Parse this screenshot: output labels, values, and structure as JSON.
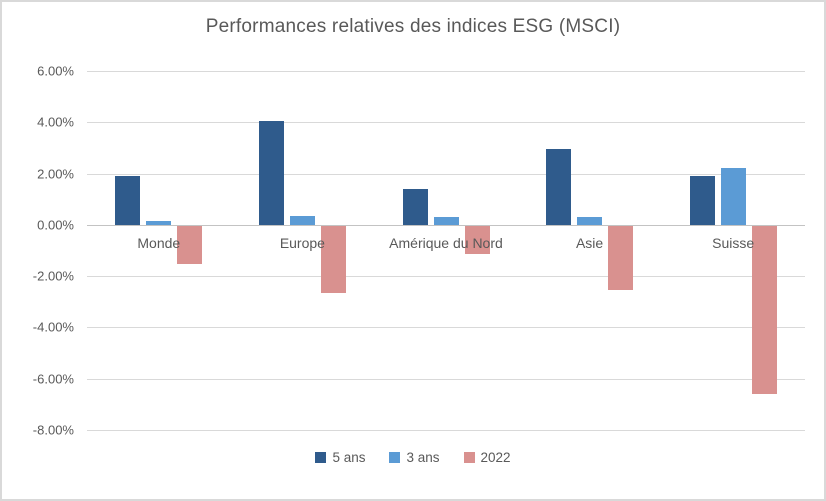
{
  "frame": {
    "background": "#FFFFFF",
    "border_color": "#D9D9D9",
    "text_color": "#595959",
    "gridline_color": "#D9D9D9",
    "zero_axis_color": "#C3C3C3"
  },
  "chart_data": {
    "type": "bar",
    "title": "Performances relatives des indices ESG (MSCI)",
    "categories": [
      "Monde",
      "Europe",
      "Amérique du Nord",
      "Asie",
      "Suisse"
    ],
    "series": [
      {
        "name": "5 ans",
        "color": "#2F5B8C",
        "values": [
          1.9,
          4.05,
          1.4,
          2.95,
          1.9
        ]
      },
      {
        "name": "3 ans",
        "color": "#5B9BD5",
        "values": [
          0.15,
          0.35,
          0.3,
          0.3,
          2.2
        ]
      },
      {
        "name": "2022",
        "color": "#D9918F",
        "values": [
          -1.5,
          -2.6,
          -1.1,
          -2.5,
          -6.55
        ]
      }
    ],
    "value_unit": "%",
    "ylim": [
      -8,
      6
    ],
    "ytick_step": 2,
    "ytick_labels": [
      "6.00%",
      "4.00%",
      "2.00%",
      "0.00%",
      "-2.00%",
      "-4.00%",
      "-6.00%",
      "-8.00%"
    ],
    "grid": true,
    "legend_position": "bottom"
  }
}
